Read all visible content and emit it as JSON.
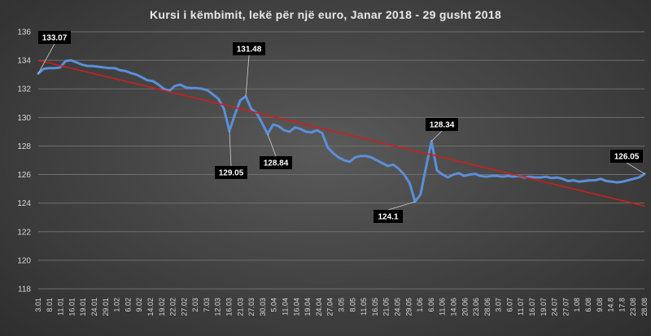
{
  "chart_data": {
    "type": "line",
    "title": "Kursi i këmbimit, lekë për një euro, Janar 2018 - 29 gusht 2018",
    "ylim": [
      118,
      136
    ],
    "y_ticks": [
      118,
      120,
      122,
      124,
      126,
      128,
      130,
      132,
      134,
      136
    ],
    "grid": "horizontal",
    "x_tick_labels": [
      "3.01",
      "8.01",
      "11.01",
      "16.01",
      "19.01",
      "24.01",
      "29.01",
      "1.02",
      "6.02",
      "9.02",
      "14.02",
      "19.02",
      "22.02",
      "27.02",
      "2.03",
      "7.03",
      "12.03",
      "16.03",
      "21.03",
      "27.03",
      "30.03",
      "5.04",
      "11.04",
      "16.04",
      "19.04",
      "24.04",
      "27.04",
      "3.05",
      "8.05",
      "11.05",
      "16.05",
      "21.05",
      "24.05",
      "29.05",
      "1.06",
      "6.06",
      "11.06",
      "14.06",
      "20.06",
      "23.06",
      "28.06",
      "3.07",
      "6.07",
      "11.07",
      "16.07",
      "19.07",
      "24.07",
      "27.07",
      "1.08",
      "6.08",
      "9.08",
      "14.8",
      "17.8",
      "23.08",
      "28.08"
    ],
    "series": [
      {
        "color": "#5b8fd8",
        "values": [
          133.07,
          133.4,
          133.45,
          133.45,
          133.5,
          133.95,
          134.0,
          133.85,
          133.7,
          133.6,
          133.6,
          133.55,
          133.5,
          133.45,
          133.45,
          133.3,
          133.25,
          133.1,
          133.0,
          132.8,
          132.6,
          132.55,
          132.3,
          132.0,
          131.85,
          132.2,
          132.3,
          132.1,
          132.05,
          132.05,
          132.0,
          131.9,
          131.6,
          131.3,
          130.6,
          129.05,
          130.2,
          131.2,
          131.48,
          130.6,
          130.3,
          129.6,
          128.84,
          129.5,
          129.4,
          129.1,
          129.0,
          129.3,
          129.2,
          129.0,
          128.95,
          129.1,
          128.9,
          127.9,
          127.5,
          127.2,
          127.0,
          126.9,
          127.2,
          127.3,
          127.3,
          127.2,
          127.0,
          126.8,
          126.6,
          126.7,
          126.4,
          126.0,
          125.4,
          124.1,
          124.6,
          126.5,
          128.34,
          126.3,
          126.0,
          125.8,
          126.0,
          126.1,
          125.9,
          126.0,
          126.05,
          125.9,
          125.85,
          125.9,
          125.9,
          125.85,
          125.9,
          125.85,
          125.9,
          125.8,
          125.85,
          125.8,
          125.8,
          125.85,
          125.75,
          125.8,
          125.7,
          125.55,
          125.6,
          125.5,
          125.55,
          125.6,
          125.6,
          125.7,
          125.55,
          125.5,
          125.45,
          125.5,
          125.6,
          125.7,
          125.8,
          126.05
        ]
      },
      {
        "name": "trend",
        "color": "#cc1f1f",
        "type": "line",
        "values": [
          134.0,
          123.8
        ]
      }
    ],
    "annotations": [
      {
        "label": "133.07"
      },
      {
        "label": "131.48"
      },
      {
        "label": "129.05"
      },
      {
        "label": "128.84"
      },
      {
        "label": "128.34"
      },
      {
        "label": "124.1"
      },
      {
        "label": "126.05"
      }
    ]
  }
}
